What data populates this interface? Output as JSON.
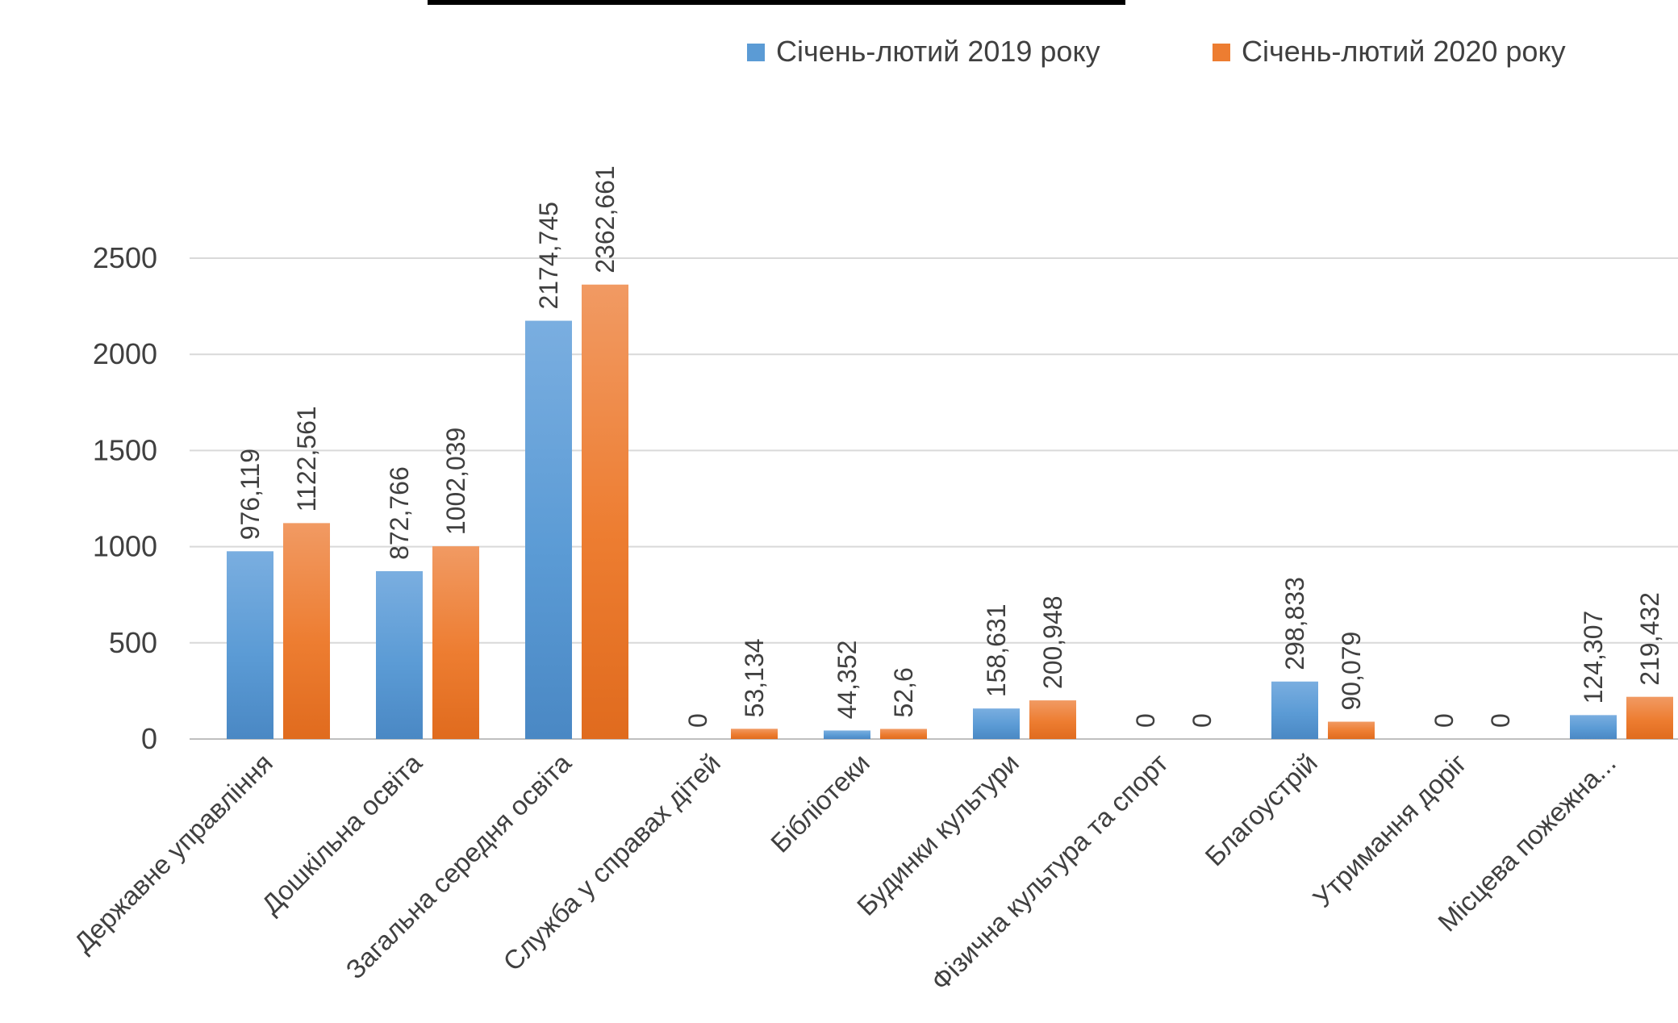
{
  "chart_data": {
    "type": "bar",
    "title": "",
    "xlabel": "",
    "ylabel": "",
    "ylim": [
      0,
      2500
    ],
    "yticks": [
      0,
      500,
      1000,
      1500,
      2000,
      2500
    ],
    "grid": true,
    "legend_position": "top-right",
    "categories": [
      "Державне управління",
      "Дошкільна освіта",
      "Загальна середня освіта",
      "Служба у справах дітей",
      "Бібліотеки",
      "Будинки культури",
      "Фізична культура та спорт",
      "Благоустрій",
      "Утримання доріг",
      "Місцева пожежна..."
    ],
    "series": [
      {
        "name": "Січень-лютий 2019 року",
        "color": "#5B9BD5",
        "values": [
          976.119,
          872.766,
          2174.745,
          0,
          44.352,
          158.631,
          0,
          298.833,
          0,
          124.307
        ],
        "labels": [
          "976,119",
          "872,766",
          "2174,745",
          "0",
          "44,352",
          "158,631",
          "0",
          "298,833",
          "0",
          "124,307"
        ]
      },
      {
        "name": "Січень-лютий 2020 року",
        "color": "#ED7D31",
        "values": [
          1122.561,
          1002.039,
          2362.661,
          53.134,
          52.6,
          200.948,
          0,
          90.079,
          0,
          219.432
        ],
        "labels": [
          "1122,561",
          "1002,039",
          "2362,661",
          "53,134",
          "52,6",
          "200,948",
          "0",
          "90,079",
          "0",
          "219,432"
        ]
      }
    ]
  }
}
